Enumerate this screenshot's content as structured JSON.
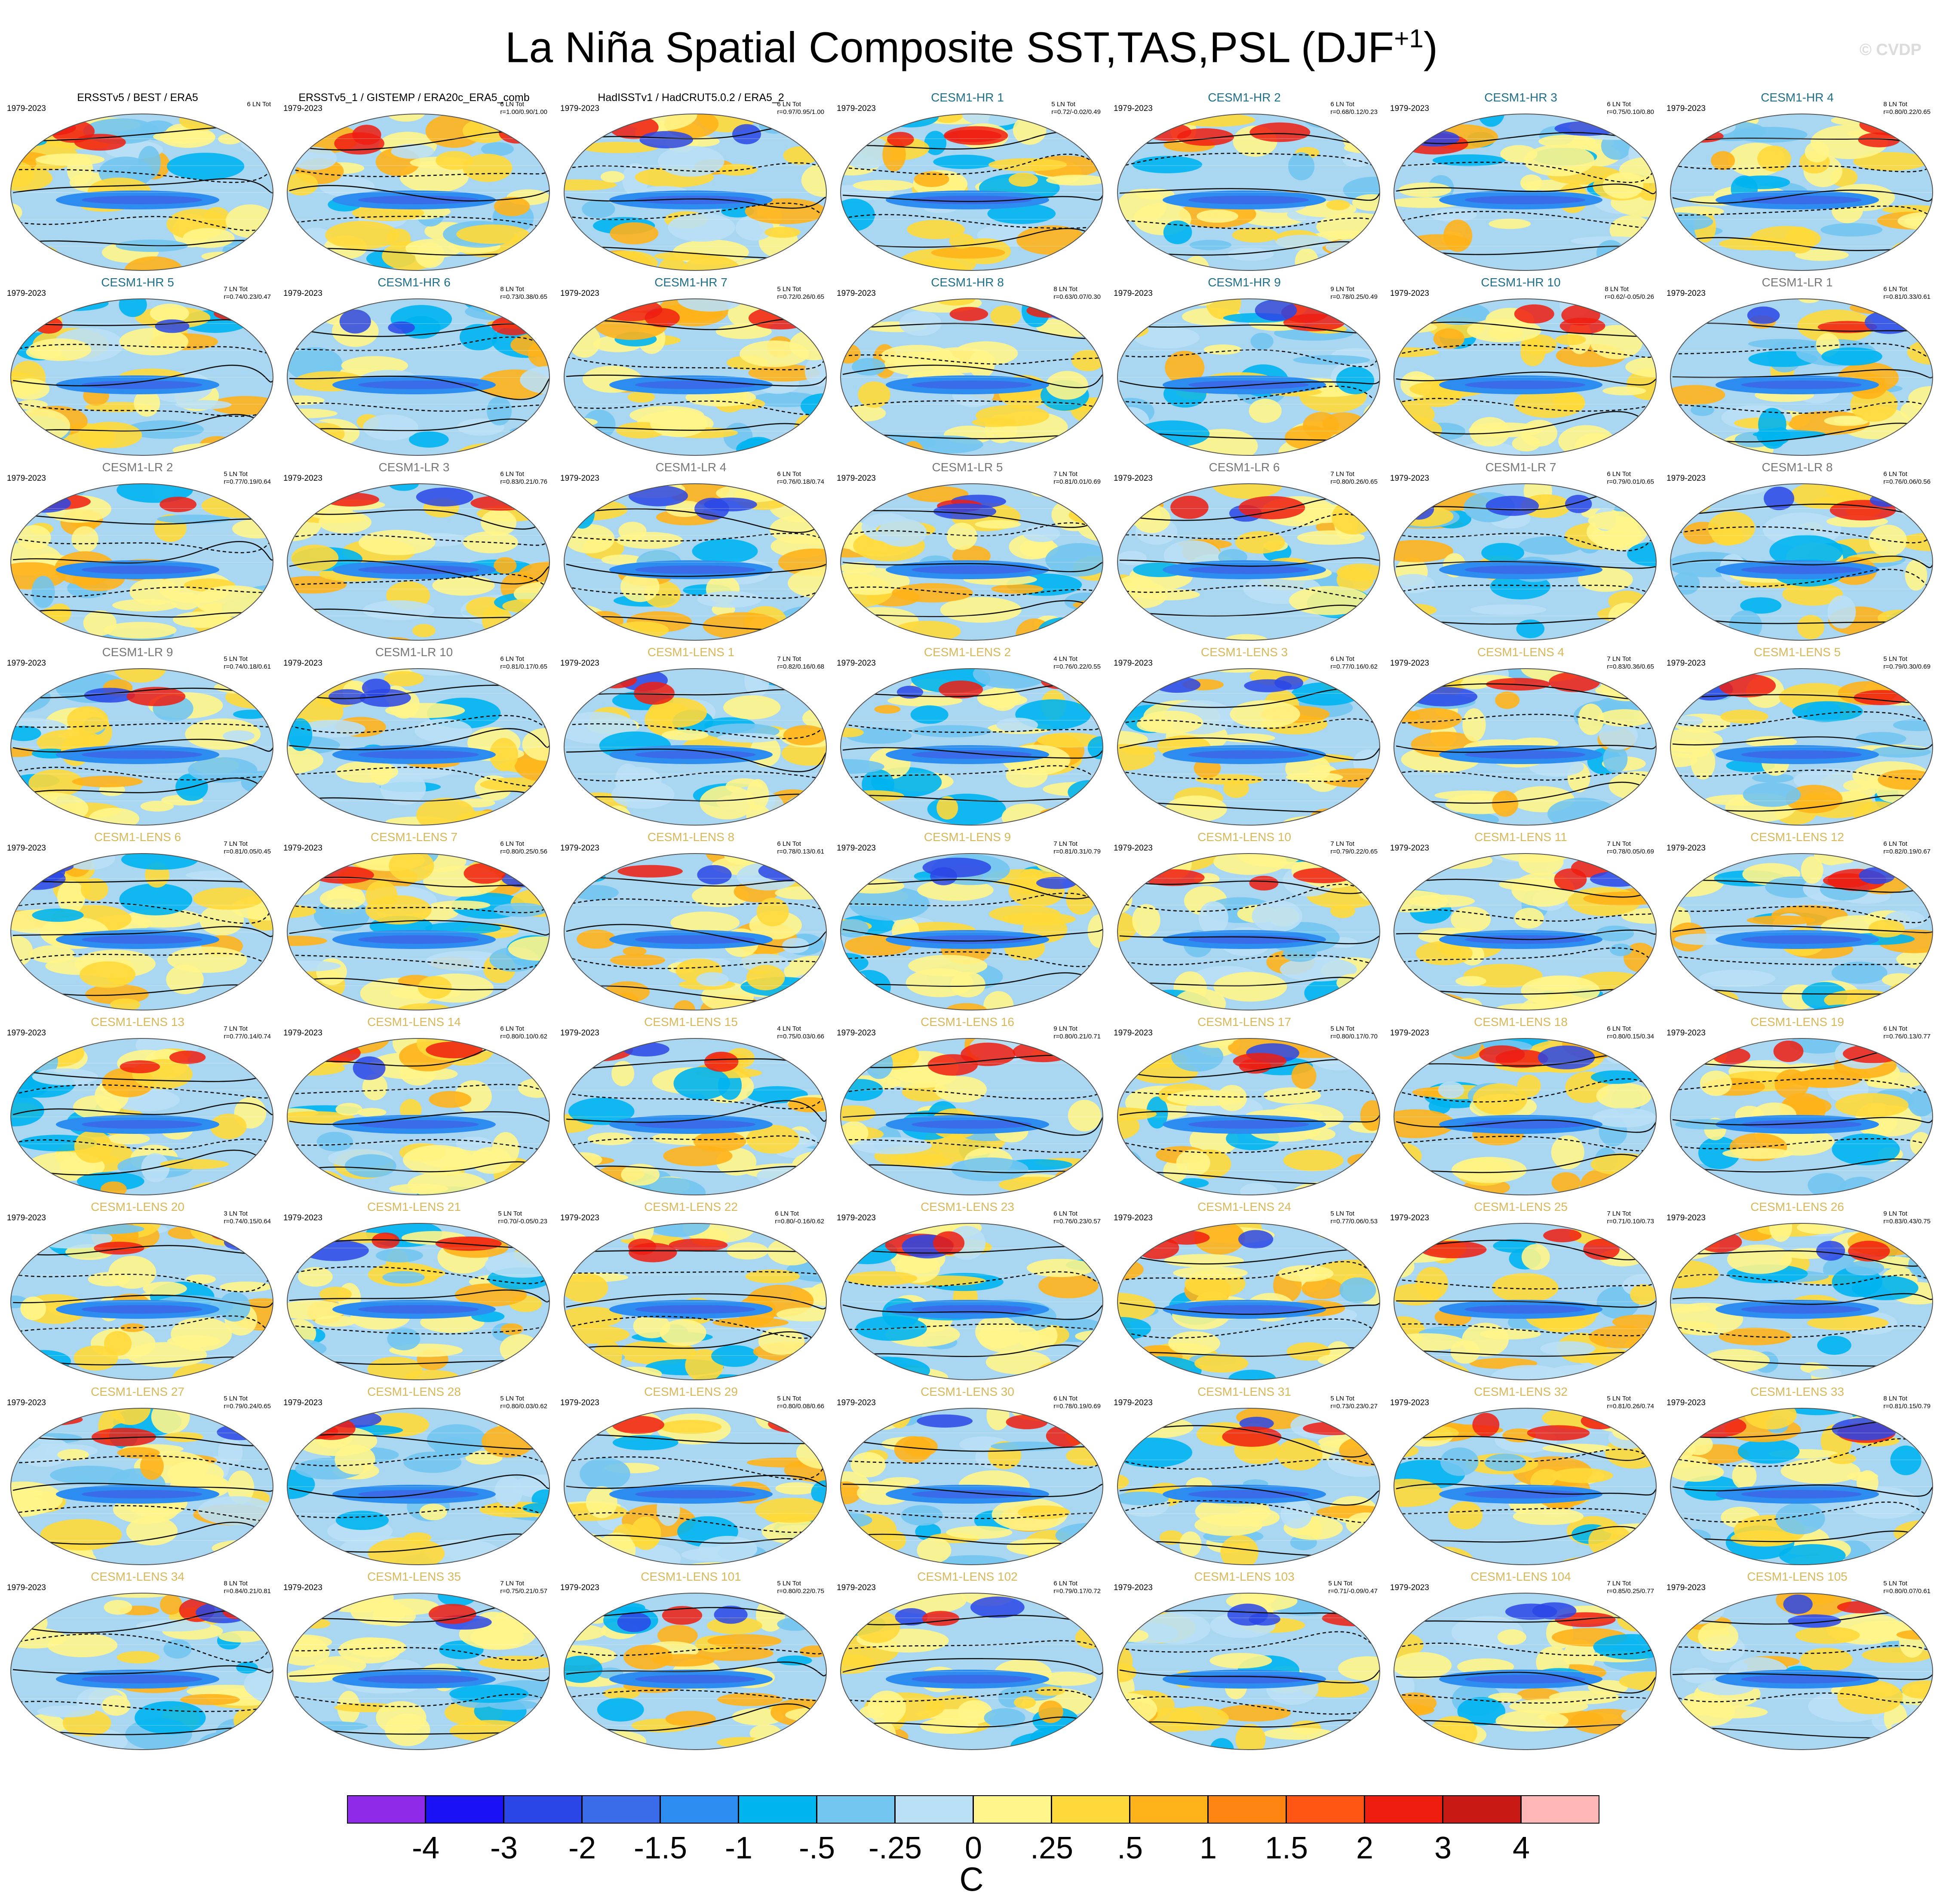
{
  "title": "La Niña Spatial Composite SST,TAS,PSL (DJF",
  "title_sup": "+1",
  "title_end": ")",
  "watermark": "© CVDP",
  "period": "1979-2023",
  "units": "C",
  "colors": {
    "obs_title": "#000000",
    "hr_title": "#1f6f8b",
    "lr_title": "#777777",
    "lens_title": "#d8b85a",
    "ocean_base": "#a9d7f2"
  },
  "colorbar": {
    "colors": [
      "#8f2ae8",
      "#1a12f5",
      "#2a46e6",
      "#3a6be8",
      "#2c8cf0",
      "#00b4f0",
      "#72c5ef",
      "#b9e0f5",
      "#fff58a",
      "#ffd93a",
      "#ffb31a",
      "#ff8512",
      "#ff5614",
      "#ee1d10",
      "#c81914",
      "#ffb6b6"
    ],
    "labels": [
      "-4",
      "-3",
      "-2",
      "-1.5",
      "-1",
      "-.5",
      "-.25",
      "0",
      ".25",
      ".5",
      "1",
      "1.5",
      "2",
      "3",
      "4"
    ]
  },
  "panels": [
    {
      "title": "ERSSTv5 / BEST / ERA5",
      "group": "obs",
      "count": "6 LN Tot",
      "stats": ""
    },
    {
      "title": "ERSSTv5_1 / GISTEMP / ERA20c_ERA5_comb",
      "group": "obs",
      "count": "6 LN Tot",
      "stats": "r=1.00/0.90/1.00"
    },
    {
      "title": "HadISSTv1 / HadCRUT5.0.2 / ERA5_2",
      "group": "obs",
      "count": "6 LN Tot",
      "stats": "r=0.97/0.95/1.00"
    },
    {
      "title": "CESM1-HR 1",
      "group": "hr",
      "count": "5 LN Tot",
      "stats": "r=0.72/-0.02/0.49"
    },
    {
      "title": "CESM1-HR 2",
      "group": "hr",
      "count": "6 LN Tot",
      "stats": "r=0.68/0.12/0.23"
    },
    {
      "title": "CESM1-HR 3",
      "group": "hr",
      "count": "6 LN Tot",
      "stats": "r=0.75/0.10/0.80"
    },
    {
      "title": "CESM1-HR 4",
      "group": "hr",
      "count": "8 LN Tot",
      "stats": "r=0.80/0.22/0.65"
    },
    {
      "title": "CESM1-HR 5",
      "group": "hr",
      "count": "7 LN Tot",
      "stats": "r=0.74/0.23/0.47"
    },
    {
      "title": "CESM1-HR 6",
      "group": "hr",
      "count": "8 LN Tot",
      "stats": "r=0.73/0.38/0.65"
    },
    {
      "title": "CESM1-HR 7",
      "group": "hr",
      "count": "5 LN Tot",
      "stats": "r=0.72/0.26/0.65"
    },
    {
      "title": "CESM1-HR 8",
      "group": "hr",
      "count": "8 LN Tot",
      "stats": "r=0.63/0.07/0.30"
    },
    {
      "title": "CESM1-HR 9",
      "group": "hr",
      "count": "9 LN Tot",
      "stats": "r=0.78/0.25/0.49"
    },
    {
      "title": "CESM1-HR 10",
      "group": "hr",
      "count": "8 LN Tot",
      "stats": "r=0.62/-0.05/0.26"
    },
    {
      "title": "CESM1-LR 1",
      "group": "lr",
      "count": "6 LN Tot",
      "stats": "r=0.81/0.33/0.61"
    },
    {
      "title": "CESM1-LR 2",
      "group": "lr",
      "count": "5 LN Tot",
      "stats": "r=0.77/0.19/0.64"
    },
    {
      "title": "CESM1-LR 3",
      "group": "lr",
      "count": "6 LN Tot",
      "stats": "r=0.83/0.21/0.76"
    },
    {
      "title": "CESM1-LR 4",
      "group": "lr",
      "count": "6 LN Tot",
      "stats": "r=0.76/0.18/0.74"
    },
    {
      "title": "CESM1-LR 5",
      "group": "lr",
      "count": "7 LN Tot",
      "stats": "r=0.81/0.01/0.69"
    },
    {
      "title": "CESM1-LR 6",
      "group": "lr",
      "count": "7 LN Tot",
      "stats": "r=0.80/0.26/0.65"
    },
    {
      "title": "CESM1-LR 7",
      "group": "lr",
      "count": "6 LN Tot",
      "stats": "r=0.79/0.01/0.65"
    },
    {
      "title": "CESM1-LR 8",
      "group": "lr",
      "count": "6 LN Tot",
      "stats": "r=0.76/0.06/0.56"
    },
    {
      "title": "CESM1-LR 9",
      "group": "lr",
      "count": "5 LN Tot",
      "stats": "r=0.74/0.18/0.61"
    },
    {
      "title": "CESM1-LR 10",
      "group": "lr",
      "count": "6 LN Tot",
      "stats": "r=0.81/0.17/0.65"
    },
    {
      "title": "CESM1-LENS 1",
      "group": "lens",
      "count": "7 LN Tot",
      "stats": "r=0.82/0.16/0.68"
    },
    {
      "title": "CESM1-LENS 2",
      "group": "lens",
      "count": "4 LN Tot",
      "stats": "r=0.76/0.22/0.55"
    },
    {
      "title": "CESM1-LENS 3",
      "group": "lens",
      "count": "6 LN Tot",
      "stats": "r=0.77/0.16/0.62"
    },
    {
      "title": "CESM1-LENS 4",
      "group": "lens",
      "count": "7 LN Tot",
      "stats": "r=0.83/0.36/0.65"
    },
    {
      "title": "CESM1-LENS 5",
      "group": "lens",
      "count": "5 LN Tot",
      "stats": "r=0.79/0.30/0.69"
    },
    {
      "title": "CESM1-LENS 6",
      "group": "lens",
      "count": "7 LN Tot",
      "stats": "r=0.81/0.05/0.45"
    },
    {
      "title": "CESM1-LENS 7",
      "group": "lens",
      "count": "6 LN Tot",
      "stats": "r=0.80/0.25/0.56"
    },
    {
      "title": "CESM1-LENS 8",
      "group": "lens",
      "count": "6 LN Tot",
      "stats": "r=0.78/0.13/0.61"
    },
    {
      "title": "CESM1-LENS 9",
      "group": "lens",
      "count": "7 LN Tot",
      "stats": "r=0.81/0.31/0.79"
    },
    {
      "title": "CESM1-LENS 10",
      "group": "lens",
      "count": "7 LN Tot",
      "stats": "r=0.79/0.22/0.65"
    },
    {
      "title": "CESM1-LENS 11",
      "group": "lens",
      "count": "7 LN Tot",
      "stats": "r=0.78/0.05/0.69"
    },
    {
      "title": "CESM1-LENS 12",
      "group": "lens",
      "count": "6 LN Tot",
      "stats": "r=0.82/0.19/0.67"
    },
    {
      "title": "CESM1-LENS 13",
      "group": "lens",
      "count": "7 LN Tot",
      "stats": "r=0.77/0.14/0.74"
    },
    {
      "title": "CESM1-LENS 14",
      "group": "lens",
      "count": "6 LN Tot",
      "stats": "r=0.80/0.10/0.62"
    },
    {
      "title": "CESM1-LENS 15",
      "group": "lens",
      "count": "4 LN Tot",
      "stats": "r=0.75/0.03/0.66"
    },
    {
      "title": "CESM1-LENS 16",
      "group": "lens",
      "count": "9 LN Tot",
      "stats": "r=0.80/0.21/0.71"
    },
    {
      "title": "CESM1-LENS 17",
      "group": "lens",
      "count": "5 LN Tot",
      "stats": "r=0.80/0.17/0.70"
    },
    {
      "title": "CESM1-LENS 18",
      "group": "lens",
      "count": "6 LN Tot",
      "stats": "r=0.80/0.15/0.34"
    },
    {
      "title": "CESM1-LENS 19",
      "group": "lens",
      "count": "6 LN Tot",
      "stats": "r=0.76/0.13/0.77"
    },
    {
      "title": "CESM1-LENS 20",
      "group": "lens",
      "count": "3 LN Tot",
      "stats": "r=0.74/0.15/0.64"
    },
    {
      "title": "CESM1-LENS 21",
      "group": "lens",
      "count": "5 LN Tot",
      "stats": "r=0.70/-0.05/0.23"
    },
    {
      "title": "CESM1-LENS 22",
      "group": "lens",
      "count": "6 LN Tot",
      "stats": "r=0.80/-0.16/0.62"
    },
    {
      "title": "CESM1-LENS 23",
      "group": "lens",
      "count": "6 LN Tot",
      "stats": "r=0.76/0.23/0.57"
    },
    {
      "title": "CESM1-LENS 24",
      "group": "lens",
      "count": "5 LN Tot",
      "stats": "r=0.77/0.06/0.53"
    },
    {
      "title": "CESM1-LENS 25",
      "group": "lens",
      "count": "7 LN Tot",
      "stats": "r=0.71/0.10/0.73"
    },
    {
      "title": "CESM1-LENS 26",
      "group": "lens",
      "count": "9 LN Tot",
      "stats": "r=0.83/0.43/0.75"
    },
    {
      "title": "CESM1-LENS 27",
      "group": "lens",
      "count": "5 LN Tot",
      "stats": "r=0.79/0.24/0.65"
    },
    {
      "title": "CESM1-LENS 28",
      "group": "lens",
      "count": "5 LN Tot",
      "stats": "r=0.80/0.03/0.62"
    },
    {
      "title": "CESM1-LENS 29",
      "group": "lens",
      "count": "5 LN Tot",
      "stats": "r=0.80/0.08/0.66"
    },
    {
      "title": "CESM1-LENS 30",
      "group": "lens",
      "count": "6 LN Tot",
      "stats": "r=0.78/0.19/0.69"
    },
    {
      "title": "CESM1-LENS 31",
      "group": "lens",
      "count": "5 LN Tot",
      "stats": "r=0.73/0.23/0.27"
    },
    {
      "title": "CESM1-LENS 32",
      "group": "lens",
      "count": "5 LN Tot",
      "stats": "r=0.81/0.26/0.74"
    },
    {
      "title": "CESM1-LENS 33",
      "group": "lens",
      "count": "8 LN Tot",
      "stats": "r=0.81/0.15/0.79"
    },
    {
      "title": "CESM1-LENS 34",
      "group": "lens",
      "count": "8 LN Tot",
      "stats": "r=0.84/0.21/0.81"
    },
    {
      "title": "CESM1-LENS 35",
      "group": "lens",
      "count": "7 LN Tot",
      "stats": "r=0.75/0.21/0.57"
    },
    {
      "title": "CESM1-LENS 101",
      "group": "lens",
      "count": "5 LN Tot",
      "stats": "r=0.80/0.22/0.75"
    },
    {
      "title": "CESM1-LENS 102",
      "group": "lens",
      "count": "6 LN Tot",
      "stats": "r=0.79/0.17/0.72"
    },
    {
      "title": "CESM1-LENS 103",
      "group": "lens",
      "count": "5 LN Tot",
      "stats": "r=0.71/-0.09/0.47"
    },
    {
      "title": "CESM1-LENS 104",
      "group": "lens",
      "count": "7 LN Tot",
      "stats": "r=0.85/0.25/0.77"
    },
    {
      "title": "CESM1-LENS 105",
      "group": "lens",
      "count": "5 LN Tot",
      "stats": "r=0.80/0.07/0.61"
    }
  ]
}
